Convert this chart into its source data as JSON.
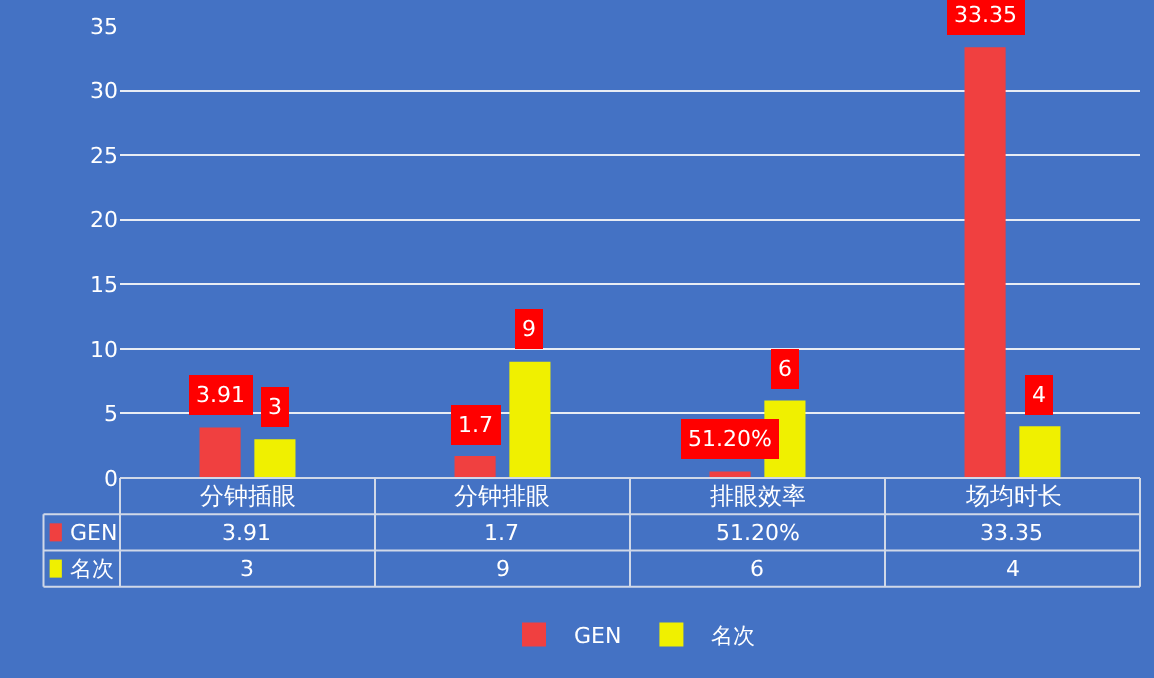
{
  "chart_data": {
    "type": "bar",
    "categories": [
      "分钟插眼",
      "分钟排眼",
      "排眼效率",
      "场均时长"
    ],
    "series": [
      {
        "name": "GEN",
        "color": "#f04040",
        "values": [
          3.91,
          1.7,
          0.512,
          33.35
        ],
        "value_labels": [
          "3.91",
          "1.7",
          "51.20%",
          "33.35"
        ]
      },
      {
        "name": "名次",
        "color": "#f0f000",
        "values": [
          3,
          9,
          6,
          4
        ],
        "value_labels": [
          "3",
          "9",
          "6",
          "4"
        ]
      }
    ],
    "ylim": [
      0,
      35
    ],
    "yticks": [
      0,
      5,
      10,
      15,
      20,
      25,
      30,
      35
    ],
    "grid": "y",
    "legend": "bottom"
  }
}
